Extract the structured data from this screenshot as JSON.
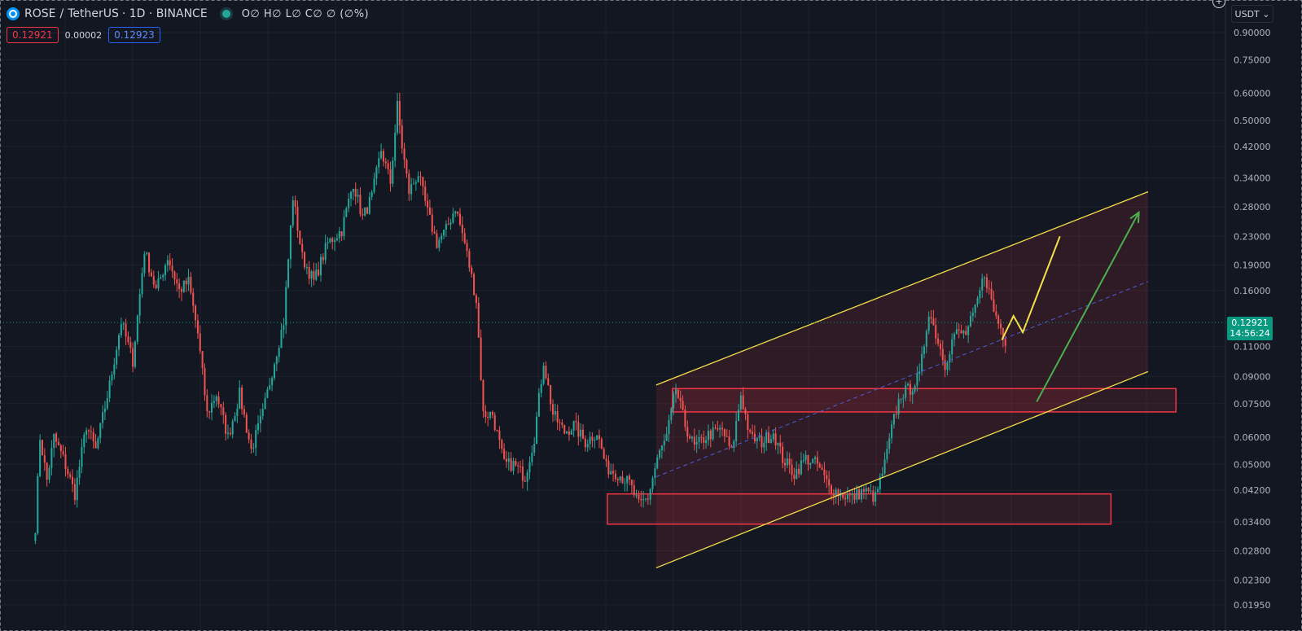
{
  "header": {
    "symbol": "ROSE",
    "separator": "/",
    "quote": "TetherUS",
    "interval_exchange": "· 1D · BINANCE",
    "ohlc_text": "O∅ H∅ L∅ C∅ ∅ (∅%)"
  },
  "trade": {
    "sell_price": "0.12921",
    "spread": "0.00002",
    "buy_price": "0.12923"
  },
  "currency_button": "USDT ⌄",
  "add_button": "+",
  "last_price": {
    "value": "0.12921",
    "countdown": "14:56:24",
    "color": "#089981"
  },
  "colors": {
    "background": "#131722",
    "grid": "#1e222d",
    "up": "#26a69a",
    "down": "#ef5350",
    "channel": "#f5e04a",
    "zone": "#f23645",
    "projection_green": "#4caf50"
  },
  "chart_data": {
    "type": "candlestick",
    "scale": "log",
    "y_ticks": [
      "0.90000",
      "0.75000",
      "0.60000",
      "0.50000",
      "0.42000",
      "0.34000",
      "0.28000",
      "0.23000",
      "0.19000",
      "0.16000",
      "0.11000",
      "0.09000",
      "0.07500",
      "0.06000",
      "0.05000",
      "0.04200",
      "0.03400",
      "0.02800",
      "0.02300",
      "0.01950"
    ],
    "ylim": [
      0.0185,
      1.0
    ],
    "anchors": [
      [
        0,
        0.033
      ],
      [
        2,
        0.06
      ],
      [
        5,
        0.045
      ],
      [
        8,
        0.06
      ],
      [
        12,
        0.052
      ],
      [
        17,
        0.041
      ],
      [
        22,
        0.065
      ],
      [
        26,
        0.055
      ],
      [
        32,
        0.085
      ],
      [
        37,
        0.13
      ],
      [
        42,
        0.1
      ],
      [
        47,
        0.21
      ],
      [
        52,
        0.16
      ],
      [
        57,
        0.2
      ],
      [
        62,
        0.16
      ],
      [
        66,
        0.17
      ],
      [
        70,
        0.12
      ],
      [
        74,
        0.07
      ],
      [
        78,
        0.08
      ],
      [
        83,
        0.06
      ],
      [
        88,
        0.08
      ],
      [
        93,
        0.055
      ],
      [
        98,
        0.07
      ],
      [
        103,
        0.1
      ],
      [
        107,
        0.13
      ],
      [
        111,
        0.3
      ],
      [
        115,
        0.2
      ],
      [
        120,
        0.17
      ],
      [
        126,
        0.22
      ],
      [
        132,
        0.24
      ],
      [
        137,
        0.33
      ],
      [
        141,
        0.26
      ],
      [
        145,
        0.3
      ],
      [
        149,
        0.41
      ],
      [
        153,
        0.33
      ],
      [
        156,
        0.55
      ],
      [
        158,
        0.42
      ],
      [
        161,
        0.31
      ],
      [
        165,
        0.35
      ],
      [
        169,
        0.27
      ],
      [
        173,
        0.22
      ],
      [
        177,
        0.24
      ],
      [
        181,
        0.28
      ],
      [
        185,
        0.22
      ],
      [
        190,
        0.15
      ],
      [
        193,
        0.07
      ],
      [
        197,
        0.07
      ],
      [
        202,
        0.05
      ],
      [
        206,
        0.05
      ],
      [
        211,
        0.046
      ],
      [
        215,
        0.06
      ],
      [
        219,
        0.1
      ],
      [
        223,
        0.07
      ],
      [
        228,
        0.062
      ],
      [
        232,
        0.065
      ],
      [
        237,
        0.058
      ],
      [
        242,
        0.062
      ],
      [
        246,
        0.049
      ],
      [
        251,
        0.047
      ],
      [
        256,
        0.044
      ],
      [
        260,
        0.038
      ],
      [
        264,
        0.04
      ],
      [
        268,
        0.052
      ],
      [
        272,
        0.06
      ],
      [
        276,
        0.083
      ],
      [
        280,
        0.065
      ],
      [
        284,
        0.056
      ],
      [
        290,
        0.061
      ],
      [
        296,
        0.063
      ],
      [
        300,
        0.054
      ],
      [
        304,
        0.08
      ],
      [
        308,
        0.06
      ],
      [
        313,
        0.058
      ],
      [
        318,
        0.062
      ],
      [
        322,
        0.052
      ],
      [
        327,
        0.047
      ],
      [
        332,
        0.052
      ],
      [
        337,
        0.05
      ],
      [
        342,
        0.043
      ],
      [
        347,
        0.041
      ],
      [
        352,
        0.04
      ],
      [
        357,
        0.042
      ],
      [
        362,
        0.04
      ],
      [
        366,
        0.05
      ],
      [
        370,
        0.068
      ],
      [
        373,
        0.08
      ],
      [
        377,
        0.083
      ],
      [
        381,
        0.09
      ],
      [
        385,
        0.14
      ],
      [
        388,
        0.12
      ],
      [
        392,
        0.098
      ],
      [
        396,
        0.12
      ],
      [
        401,
        0.12
      ],
      [
        405,
        0.14
      ],
      [
        409,
        0.18
      ],
      [
        413,
        0.14
      ],
      [
        418,
        0.115
      ]
    ],
    "n_candles": 419,
    "channel_upper": [
      [
        268,
        0.085
      ],
      [
        480,
        0.31
      ]
    ],
    "channel_lower": [
      [
        268,
        0.025
      ],
      [
        480,
        0.093
      ]
    ],
    "channel_mid": [
      [
        268,
        0.046
      ],
      [
        480,
        0.17
      ]
    ],
    "zones": [
      {
        "x": [
          247,
          464
        ],
        "y": [
          0.0335,
          0.041
        ]
      },
      {
        "x": [
          275,
          492
        ],
        "y": [
          0.071,
          0.083
        ]
      }
    ],
    "projection_yellow": [
      [
        417,
        0.115
      ],
      [
        422,
        0.135
      ],
      [
        426,
        0.121
      ],
      [
        442,
        0.23
      ]
    ],
    "projection_green": [
      [
        432,
        0.076
      ],
      [
        476,
        0.27
      ]
    ]
  }
}
